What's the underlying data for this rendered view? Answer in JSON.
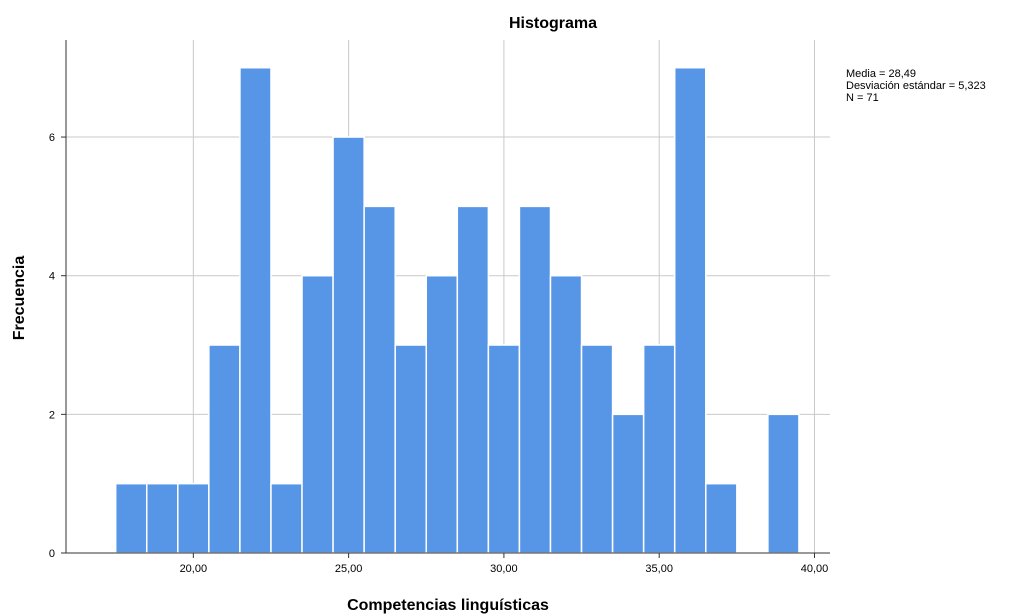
{
  "chart_data": {
    "type": "bar",
    "title": "Histograma",
    "xlabel": "Competencias linguísticas",
    "ylabel": "Frecuencia",
    "bin_width": 1,
    "bins_start": [
      17.5,
      18.5,
      19.5,
      20.5,
      21.5,
      22.5,
      23.5,
      24.5,
      25.5,
      26.5,
      27.5,
      28.5,
      29.5,
      30.5,
      31.5,
      32.5,
      33.5,
      34.5,
      35.5,
      36.5,
      37.5,
      38.5
    ],
    "values": [
      1,
      1,
      1,
      3,
      7,
      1,
      4,
      6,
      5,
      3,
      4,
      5,
      3,
      5,
      4,
      3,
      2,
      3,
      7,
      1,
      0,
      2
    ],
    "xlim": [
      15.9,
      40.5
    ],
    "ylim": [
      0,
      7.4
    ],
    "x_ticks": [
      20,
      25,
      30,
      35,
      40
    ],
    "x_tick_labels": [
      "20,00",
      "25,00",
      "30,00",
      "35,00",
      "40,00"
    ],
    "y_ticks": [
      0,
      2,
      4,
      6
    ],
    "y_tick_labels": [
      "0",
      "2",
      "4",
      "6"
    ],
    "grid": true,
    "bar_color": "#5796e6",
    "stats": {
      "line1": "Media = 28,49",
      "line2": "Desviación estándar = 5,323",
      "line3": "N = 71"
    }
  }
}
